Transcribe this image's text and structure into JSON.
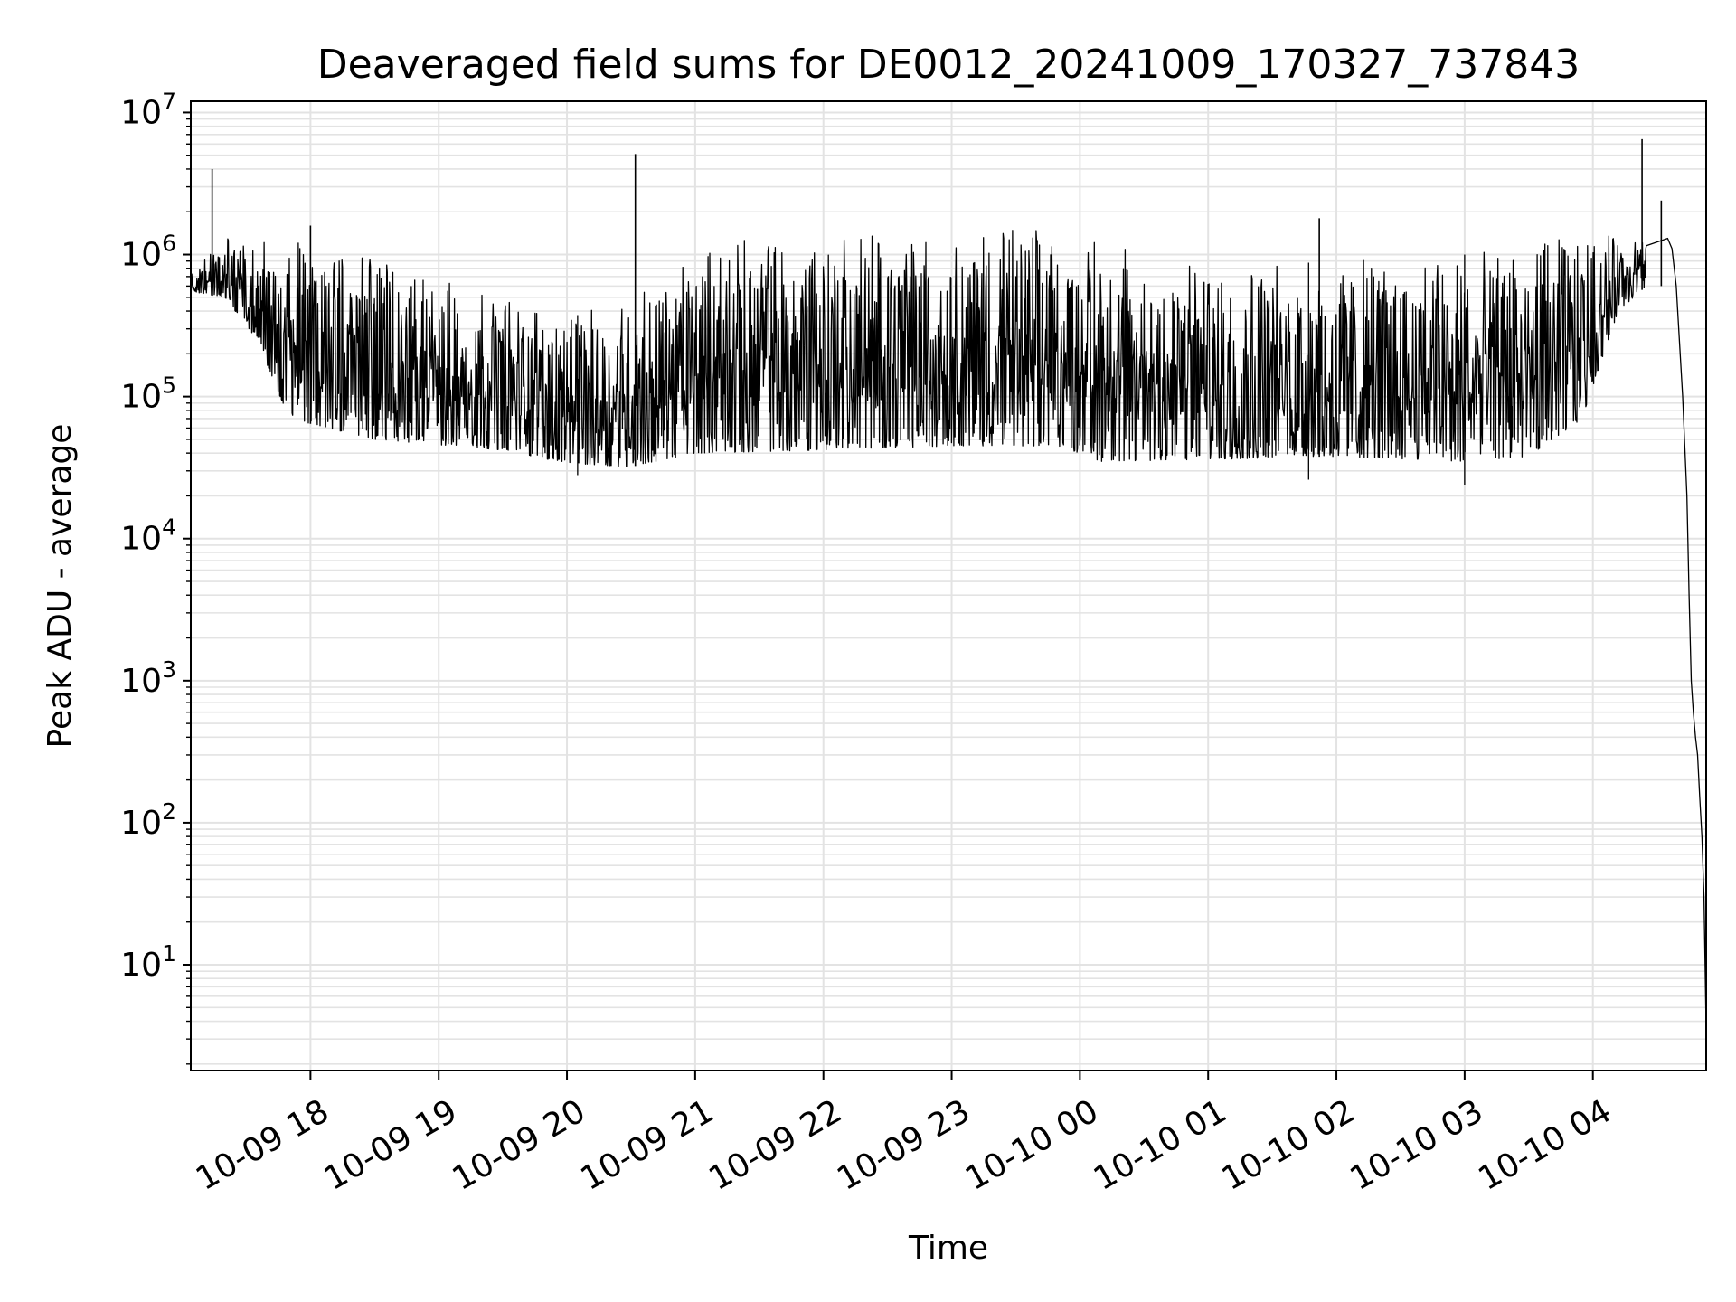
{
  "chart_data": {
    "type": "line",
    "title": "Deaveraged field sums for DE0012_20241009_170327_737843",
    "xlabel": "Time",
    "ylabel": "Peak ADU - average",
    "yscale": "log",
    "grid": true,
    "line_color": "#000000",
    "grid_color": "#e3e3e3",
    "xlim": [
      "2024-10-09 17:04",
      "2024-10-10 04:53"
    ],
    "ylim": [
      1.8,
      12000000
    ],
    "x_ticks": [
      {
        "t": "2024-10-09 18:00",
        "label": "10-09 18"
      },
      {
        "t": "2024-10-09 19:00",
        "label": "10-09 19"
      },
      {
        "t": "2024-10-09 20:00",
        "label": "10-09 20"
      },
      {
        "t": "2024-10-09 21:00",
        "label": "10-09 21"
      },
      {
        "t": "2024-10-09 22:00",
        "label": "10-09 22"
      },
      {
        "t": "2024-10-09 23:00",
        "label": "10-09 23"
      },
      {
        "t": "2024-10-10 00:00",
        "label": "10-10 00"
      },
      {
        "t": "2024-10-10 01:00",
        "label": "10-10 01"
      },
      {
        "t": "2024-10-10 02:00",
        "label": "10-10 02"
      },
      {
        "t": "2024-10-10 03:00",
        "label": "10-10 03"
      },
      {
        "t": "2024-10-10 04:00",
        "label": "10-10 04"
      }
    ],
    "y_ticks": [
      {
        "value": 10,
        "base": "10",
        "exp": "1"
      },
      {
        "value": 100,
        "base": "10",
        "exp": "2"
      },
      {
        "value": 1000,
        "base": "10",
        "exp": "3"
      },
      {
        "value": 10000,
        "base": "10",
        "exp": "4"
      },
      {
        "value": 100000,
        "base": "10",
        "exp": "5"
      },
      {
        "value": 1000000,
        "base": "10",
        "exp": "6"
      },
      {
        "value": 10000000,
        "base": "10",
        "exp": "7"
      }
    ],
    "series": [
      {
        "lower_envelope": [
          [
            "2024-10-09 17:04",
            550000
          ],
          [
            "2024-10-09 17:20",
            500000
          ],
          [
            "2024-10-09 17:35",
            250000
          ],
          [
            "2024-10-09 17:50",
            70000
          ],
          [
            "2024-10-09 18:30",
            50000
          ],
          [
            "2024-10-09 19:30",
            42000
          ],
          [
            "2024-10-09 20:00",
            34000
          ],
          [
            "2024-10-09 20:30",
            32000
          ],
          [
            "2024-10-09 21:00",
            40000
          ],
          [
            "2024-10-09 22:00",
            42000
          ],
          [
            "2024-10-09 23:00",
            45000
          ],
          [
            "2024-10-09 23:50",
            45000
          ],
          [
            "2024-10-10 00:10",
            35000
          ],
          [
            "2024-10-10 01:00",
            36000
          ],
          [
            "2024-10-10 02:00",
            38000
          ],
          [
            "2024-10-10 03:00",
            35000
          ],
          [
            "2024-10-10 03:30",
            38000
          ],
          [
            "2024-10-10 03:55",
            70000
          ],
          [
            "2024-10-10 04:05",
            200000
          ],
          [
            "2024-10-10 04:12",
            400000
          ],
          [
            "2024-10-10 04:25",
            600000
          ]
        ],
        "upper_envelope": [
          [
            "2024-10-09 17:04",
            750000
          ],
          [
            "2024-10-09 17:20",
            1300000
          ],
          [
            "2024-10-09 18:00",
            1200000
          ],
          [
            "2024-10-09 19:00",
            700000
          ],
          [
            "2024-10-09 20:00",
            350000
          ],
          [
            "2024-10-09 20:40",
            600000
          ],
          [
            "2024-10-09 21:15",
            1300000
          ],
          [
            "2024-10-09 22:00",
            1400000
          ],
          [
            "2024-10-09 23:00",
            1500000
          ],
          [
            "2024-10-09 23:50",
            1500000
          ],
          [
            "2024-10-10 00:30",
            1000000
          ],
          [
            "2024-10-10 01:00",
            800000
          ],
          [
            "2024-10-10 02:00",
            900000
          ],
          [
            "2024-10-10 03:00",
            1000000
          ],
          [
            "2024-10-10 04:00",
            1400000
          ],
          [
            "2024-10-10 04:25",
            1300000
          ]
        ],
        "spikes": [
          [
            "2024-10-09 17:14",
            4000000
          ],
          [
            "2024-10-09 20:32",
            5100000
          ],
          [
            "2024-10-10 04:23",
            6500000
          ],
          [
            "2024-10-10 04:32",
            2400000
          ],
          [
            "2024-10-10 01:52",
            1800000
          ],
          [
            "2024-10-09 18:00",
            1600000
          ]
        ],
        "dips": [
          [
            "2024-10-09 20:05",
            28000
          ],
          [
            "2024-10-10 01:47",
            26000
          ],
          [
            "2024-10-10 03:00",
            24000
          ]
        ],
        "tail": [
          [
            "2024-10-10 04:35",
            1300000
          ],
          [
            "2024-10-10 04:37",
            1100000
          ],
          [
            "2024-10-10 04:39",
            600000
          ],
          [
            "2024-10-10 04:42",
            100000
          ],
          [
            "2024-10-10 04:44",
            20000
          ],
          [
            "2024-10-10 04:45",
            4000
          ],
          [
            "2024-10-10 04:46",
            1000
          ],
          [
            "2024-10-10 04:47",
            600
          ],
          [
            "2024-10-10 04:48",
            400
          ],
          [
            "2024-10-10 04:49",
            300
          ],
          [
            "2024-10-10 04:50",
            150
          ],
          [
            "2024-10-10 04:51",
            80
          ],
          [
            "2024-10-10 04:52",
            30
          ],
          [
            "2024-10-10 04:53",
            3.5
          ]
        ]
      }
    ]
  }
}
